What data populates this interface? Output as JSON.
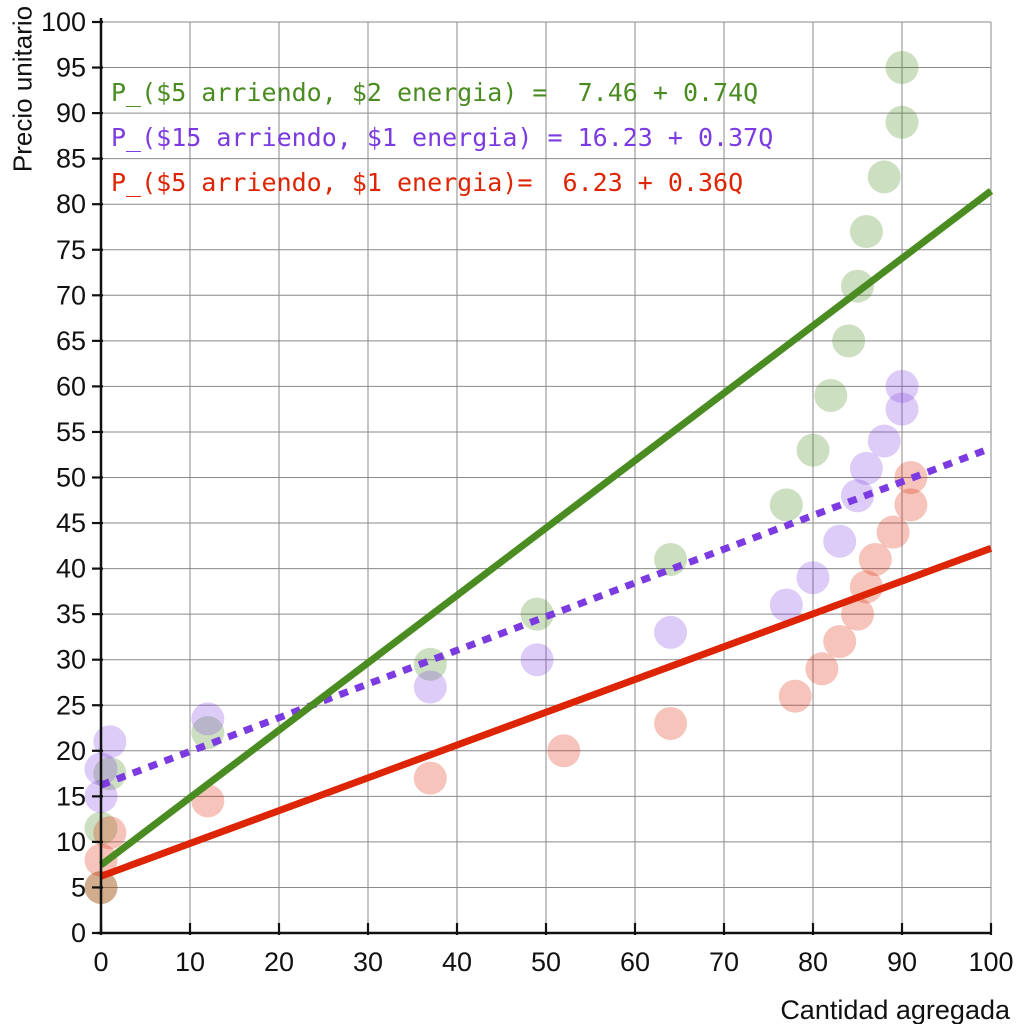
{
  "chart_data": {
    "type": "scatter",
    "title": "",
    "xlabel": "Cantidad agregada",
    "ylabel": "Precio unitario",
    "xlim": [
      0,
      100
    ],
    "ylim": [
      0,
      100
    ],
    "x_ticks": [
      0,
      10,
      20,
      30,
      40,
      50,
      60,
      70,
      80,
      90,
      100
    ],
    "y_ticks": [
      0,
      5,
      10,
      15,
      20,
      25,
      30,
      35,
      40,
      45,
      50,
      55,
      60,
      65,
      70,
      75,
      80,
      85,
      90,
      95,
      100
    ],
    "grid": true,
    "legend_position": "top-left-inside",
    "series": [
      {
        "name": "arriendo5-energia2",
        "equation_label": "P_($5 arriendo, $2 energia) =  7.46 + 0.74Q",
        "color": "#4A8C22",
        "point_opacity": 0.28,
        "line": {
          "intercept": 7.46,
          "slope": 0.74,
          "dash": "solid"
        },
        "points": [
          [
            0,
            5
          ],
          [
            0,
            11.5
          ],
          [
            1,
            17.5
          ],
          [
            12,
            22
          ],
          [
            37,
            29.5
          ],
          [
            49,
            35
          ],
          [
            64,
            41
          ],
          [
            77,
            47
          ],
          [
            80,
            53
          ],
          [
            82,
            59
          ],
          [
            84,
            65
          ],
          [
            85,
            71
          ],
          [
            86,
            77
          ],
          [
            88,
            83
          ],
          [
            90,
            89
          ],
          [
            90,
            95
          ]
        ]
      },
      {
        "name": "arriendo15-energia1",
        "equation_label": "P_($15 arriendo, $1 energia) = 16.23 + 0.37Q",
        "color": "#7C3AE1",
        "point_opacity": 0.26,
        "line": {
          "intercept": 16.23,
          "slope": 0.37,
          "dash": "dashed"
        },
        "points": [
          [
            0,
            15
          ],
          [
            0,
            18
          ],
          [
            1,
            21
          ],
          [
            12,
            23.5
          ],
          [
            37,
            27
          ],
          [
            49,
            30
          ],
          [
            64,
            33
          ],
          [
            77,
            36
          ],
          [
            80,
            39
          ],
          [
            83,
            43
          ],
          [
            85,
            48
          ],
          [
            86,
            51
          ],
          [
            88,
            54
          ],
          [
            90,
            57.5
          ],
          [
            90,
            60
          ]
        ]
      },
      {
        "name": "arriendo5-energia1",
        "equation_label": "P_($5 arriendo, $1 energia)=  6.23 + 0.36Q",
        "color": "#DD2404",
        "point_opacity": 0.27,
        "line": {
          "intercept": 6.23,
          "slope": 0.36,
          "dash": "solid"
        },
        "points": [
          [
            0,
            5
          ],
          [
            0,
            8
          ],
          [
            1,
            11
          ],
          [
            12,
            14.5
          ],
          [
            37,
            17
          ],
          [
            52,
            20
          ],
          [
            64,
            23
          ],
          [
            78,
            26
          ],
          [
            81,
            29
          ],
          [
            83,
            32
          ],
          [
            85,
            35
          ],
          [
            86,
            38
          ],
          [
            87,
            41
          ],
          [
            89,
            44
          ],
          [
            91,
            47
          ],
          [
            91,
            50
          ]
        ]
      }
    ],
    "axis_color": "#111111",
    "grid_color": "#898989"
  }
}
